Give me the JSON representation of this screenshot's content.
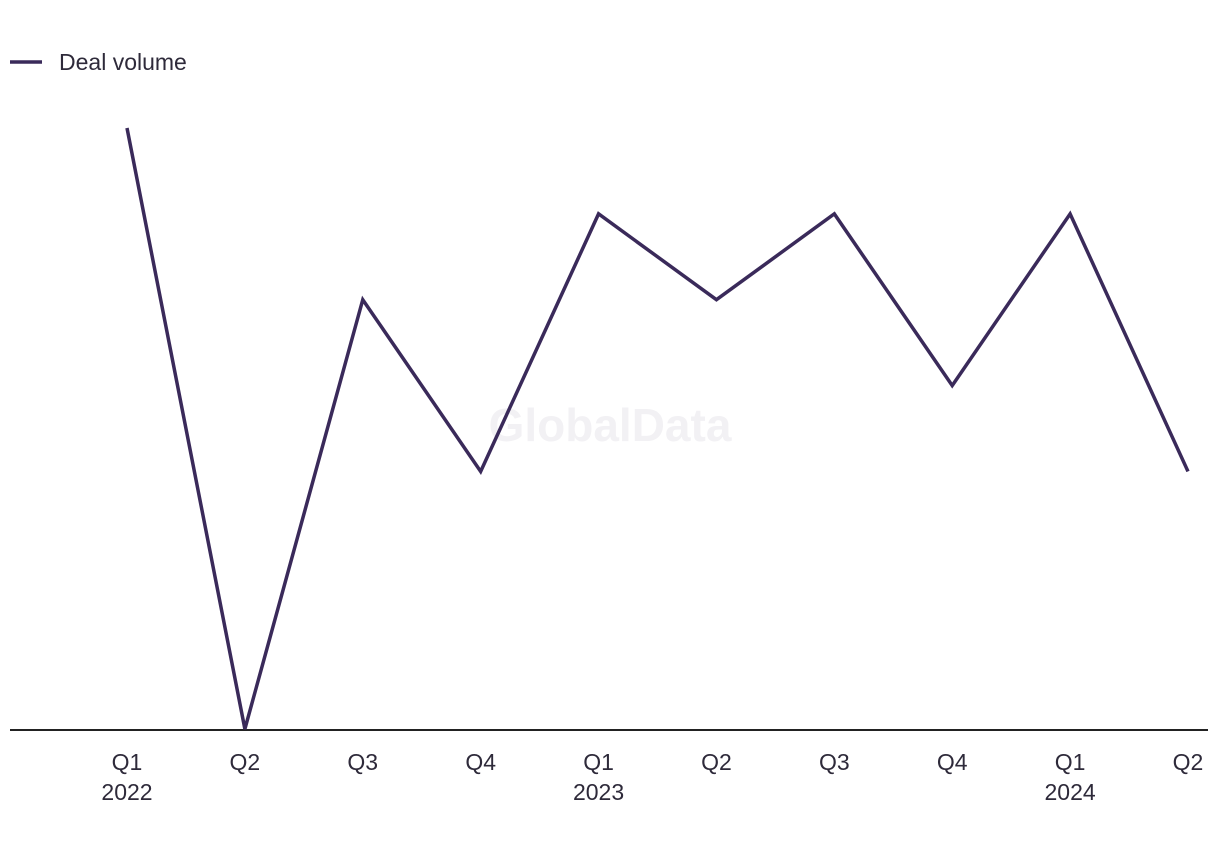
{
  "chart_data": {
    "type": "line",
    "title": "",
    "xlabel": "",
    "ylabel": "",
    "categories": [
      "Q1",
      "Q2",
      "Q3",
      "Q4",
      "Q1",
      "Q2",
      "Q3",
      "Q4",
      "Q1",
      "Q2"
    ],
    "category_years": [
      "2022",
      "",
      "",
      "",
      "2023",
      "",
      "",
      "",
      "2024",
      ""
    ],
    "series": [
      {
        "name": "Deal volume",
        "color": "#3a2a5a",
        "values": [
          7,
          0,
          5,
          3,
          6,
          5,
          6,
          4,
          6,
          3
        ]
      }
    ],
    "ylim": [
      0,
      7
    ],
    "grid": false,
    "legend_position": "top-left",
    "watermark": "GlobalData"
  }
}
